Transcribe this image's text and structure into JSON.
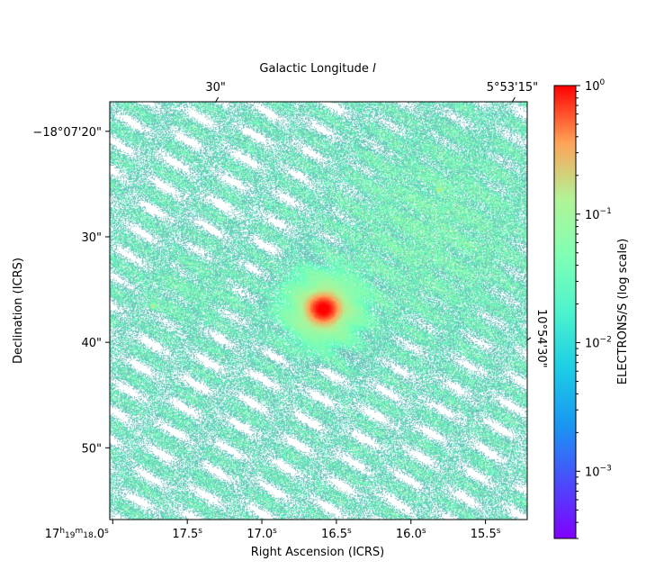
{
  "chart_data": {
    "type": "heatmap",
    "top_axis_label": "Galactic Longitude",
    "top_axis_label_var": "l",
    "top_ticks": [
      {
        "label": "30\"",
        "ra_s": 17.31
      },
      {
        "label": "5°53'15\"",
        "ra_s": 15.32
      }
    ],
    "right_axis_tick": {
      "label": "10°54'30\"",
      "dec_arcsec": 39.8
    },
    "xlabel": "Right Ascension (ICRS)",
    "ylabel": "Declination (ICRS)",
    "x_unit_suffix": "s",
    "x_prefix": "17h19m",
    "x_ticks": [
      {
        "value": 18.0,
        "label": "18.0"
      },
      {
        "value": 17.5,
        "label": "17.5"
      },
      {
        "value": 17.0,
        "label": "17.0"
      },
      {
        "value": 16.5,
        "label": "16.5"
      },
      {
        "value": 16.0,
        "label": "16.0"
      },
      {
        "value": 15.5,
        "label": "15.5"
      }
    ],
    "xlim": [
      18.02,
      15.22
    ],
    "y_ticks": [
      {
        "value": 20,
        "label": "−18°07'20\""
      },
      {
        "value": 30,
        "label": "30\""
      },
      {
        "value": 40,
        "label": "40\""
      },
      {
        "value": 50,
        "label": "50\""
      }
    ],
    "ylim": [
      17.2,
      56.8
    ],
    "colorbar": {
      "label": "ELECTRONS/S (log scale)",
      "scale": "log",
      "range": [
        0.0003,
        1.0
      ],
      "ticks": [
        {
          "value": 1,
          "base": "10",
          "exp": "0"
        },
        {
          "value": 0.1,
          "base": "10",
          "exp": "−1"
        },
        {
          "value": 0.01,
          "base": "10",
          "exp": "−2"
        },
        {
          "value": 0.001,
          "base": "10",
          "exp": "−3"
        }
      ],
      "colormap": "rainbow"
    },
    "features": [
      {
        "name": "bright source",
        "ra_s": 16.59,
        "dec_arcsec": 36.8,
        "peak_value": 1.0
      },
      {
        "name": "compact source",
        "ra_s": 17.73,
        "dec_arcsec": 36.5,
        "peak_value": 0.15
      },
      {
        "name": "compact source",
        "ra_s": 15.81,
        "dec_arcsec": 25.5,
        "peak_value": 0.15
      }
    ],
    "grid": false
  }
}
